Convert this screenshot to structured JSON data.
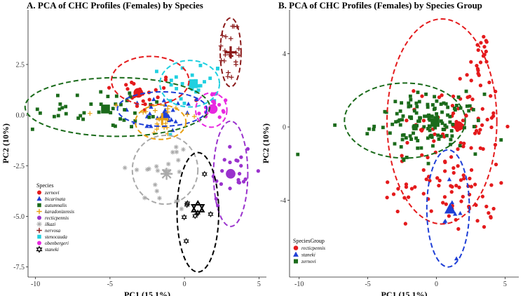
{
  "chart_data": [
    {
      "type": "scatter",
      "title": "A. PCA of CHC Profiles (Females) by Species",
      "xlabel": "PC1 (15.1%)",
      "ylabel": "PC2 (10%)",
      "xlim": [
        -10.5,
        5.5
      ],
      "ylim": [
        -8.0,
        5.2
      ],
      "xticks": [
        -10,
        -5,
        0,
        5
      ],
      "yticks": [
        -7.5,
        -5.0,
        -2.5,
        0.0,
        2.5
      ],
      "xtick_labels": [
        "-10",
        "-5",
        "0",
        "5"
      ],
      "ytick_labels": [
        "-7.5",
        "-5.0",
        "-2.5",
        "0.0",
        "2.5"
      ],
      "legend_title": "Species",
      "legend_position": "bottom-left",
      "series": [
        {
          "name": "zernovi",
          "color": "#e41a1c",
          "marker": "circle",
          "centroid": [
            -3.1,
            1.1
          ],
          "spread": [
            1.4,
            0.5
          ],
          "ellipse": {
            "cx": -2.3,
            "cy": 1.7,
            "rx": 2.6,
            "ry": 1.2
          }
        },
        {
          "name": "bicarinata",
          "color": "#1f3fd6",
          "marker": "triangle",
          "centroid": [
            -1.3,
            0.05
          ],
          "spread": [
            1.4,
            0.5
          ],
          "ellipse": {
            "cx": -1.5,
            "cy": 0.3,
            "rx": 3.0,
            "ry": 0.85
          }
        },
        {
          "name": "autumnalis",
          "color": "#1b6b1b",
          "marker": "square",
          "centroid": [
            -5.3,
            0.3
          ],
          "spread": [
            2.4,
            0.5
          ],
          "ellipse": {
            "cx": -4.5,
            "cy": 0.4,
            "rx": 6.2,
            "ry": 1.45
          }
        },
        {
          "name": "karadonizensis",
          "color": "#e8a013",
          "marker": "plus",
          "centroid": [
            -1.5,
            -0.2
          ],
          "spread": [
            1.2,
            0.6
          ],
          "ellipse": {
            "cx": -1.6,
            "cy": -0.35,
            "rx": 1.7,
            "ry": 0.85
          }
        },
        {
          "name": "recticpennis",
          "color": "#9a32cd",
          "marker": "circle",
          "centroid": [
            3.1,
            -2.9
          ],
          "spread": [
            0.8,
            0.9
          ],
          "ellipse": {
            "cx": 3.1,
            "cy": -2.9,
            "rx": 1.15,
            "ry": 2.6
          }
        },
        {
          "name": "ilkazi",
          "color": "#a9a9a9",
          "marker": "asterisk",
          "centroid": [
            -1.2,
            -2.9
          ],
          "spread": [
            1.3,
            1.0
          ],
          "ellipse": {
            "cx": -1.3,
            "cy": -2.7,
            "rx": 2.2,
            "ry": 1.7
          }
        },
        {
          "name": "nervosa",
          "color": "#8b1a1a",
          "marker": "plus",
          "centroid": [
            3.1,
            3.1
          ],
          "spread": [
            0.4,
            0.9
          ],
          "ellipse": {
            "cx": 3.1,
            "cy": 3.1,
            "rx": 0.7,
            "ry": 1.7
          }
        },
        {
          "name": "stenocauda",
          "color": "#20d0e0",
          "marker": "square",
          "centroid": [
            0.6,
            1.55
          ],
          "spread": [
            1.0,
            0.6
          ],
          "ellipse": {
            "cx": 0.35,
            "cy": 1.55,
            "rx": 2.0,
            "ry": 1.15
          }
        },
        {
          "name": "obenbergeri",
          "color": "#e828e0",
          "marker": "circle",
          "centroid": [
            1.9,
            0.3
          ],
          "spread": [
            0.6,
            0.5
          ],
          "ellipse": {
            "cx": 1.8,
            "cy": 0.25,
            "rx": 1.05,
            "ry": 0.85
          }
        },
        {
          "name": "staneki",
          "color": "#000000",
          "marker": "star",
          "centroid": [
            0.9,
            -4.6
          ],
          "spread": [
            0.5,
            0.7
          ],
          "ellipse": {
            "cx": 0.9,
            "cy": -4.8,
            "rx": 1.4,
            "ry": 2.95
          }
        }
      ]
    },
    {
      "type": "scatter",
      "title": "B. PCA of CHC Profiles (Females) by Species Group",
      "xlabel": "PC1 (15.1%)",
      "ylabel": "PC2 (10%)",
      "xlim": [
        -10.7,
        6.0
      ],
      "ylim": [
        -8.2,
        6.4
      ],
      "xticks": [
        -10,
        -5,
        0,
        5
      ],
      "yticks": [
        -4,
        0,
        4
      ],
      "xtick_labels": [
        "-10",
        "-5",
        "0",
        "5"
      ],
      "ytick_labels": [
        "-4",
        "0",
        "4"
      ],
      "legend_title": "SpeciesGroup",
      "legend_position": "bottom-left",
      "series": [
        {
          "name": "recticpennis",
          "color": "#e41a1c",
          "marker": "circle",
          "centroid": [
            1.6,
            0.05
          ],
          "ellipse": {
            "cx": 0.4,
            "cy": 0.3,
            "rx": 4.0,
            "ry": 5.6
          }
        },
        {
          "name": "staneki",
          "color": "#1f3fd6",
          "marker": "triangle",
          "centroid": [
            1.0,
            -4.5
          ],
          "ellipse": {
            "cx": 0.85,
            "cy": -4.45,
            "rx": 1.55,
            "ry": 3.2
          }
        },
        {
          "name": "zernovi",
          "color": "#1b6b1b",
          "marker": "square",
          "centroid": [
            -0.1,
            0.25
          ],
          "ellipse": {
            "cx": -2.3,
            "cy": 0.35,
            "rx": 4.4,
            "ry": 2.05
          }
        }
      ]
    }
  ]
}
